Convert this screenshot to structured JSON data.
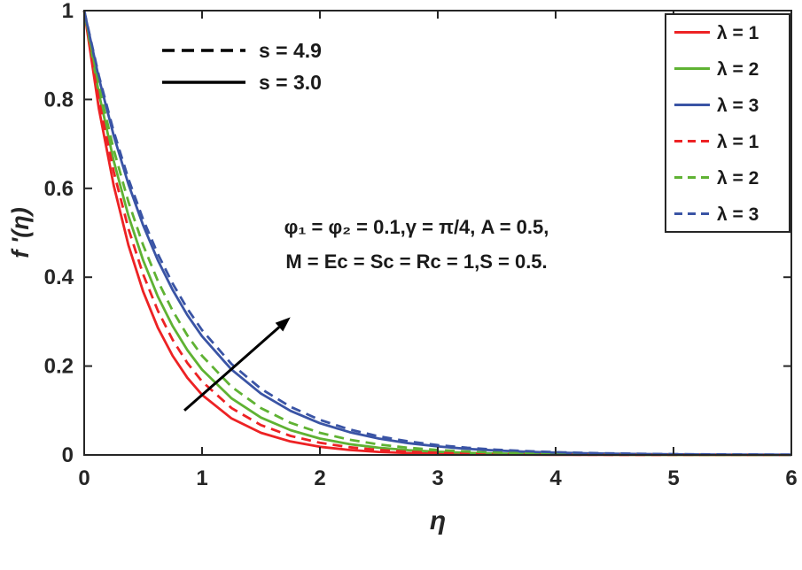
{
  "figure": {
    "background": "#ffffff",
    "axes_color": "#262626",
    "tick_label_color": "#262626",
    "annotation_color": "#1a1a1a"
  },
  "chart_data": {
    "type": "line",
    "title": "",
    "xlabel": "η",
    "ylabel": "f '(η)",
    "xlim": [
      0,
      6
    ],
    "ylim": [
      0,
      1
    ],
    "x_ticks": [
      0,
      1,
      2,
      3,
      4,
      5,
      6
    ],
    "y_ticks": [
      0,
      0.2,
      0.4,
      0.6,
      0.8,
      1
    ],
    "grid": false,
    "legend_position": "top-right",
    "x": [
      0,
      0.125,
      0.25,
      0.375,
      0.5,
      0.625,
      0.75,
      0.875,
      1,
      1.25,
      1.5,
      1.75,
      2,
      2.25,
      2.5,
      2.75,
      3,
      3.25,
      3.5,
      3.75,
      4,
      4.25,
      4.5,
      4.75,
      5,
      5.25,
      5.5,
      5.75,
      6
    ],
    "series": [
      {
        "name": "λ = 1",
        "s": "3.0",
        "color": "#ed2224",
        "dash": false,
        "values": [
          1,
          0.7788,
          0.6065,
          0.4724,
          0.3679,
          0.2865,
          0.2231,
          0.1738,
          0.1353,
          0.0821,
          0.0498,
          0.0302,
          0.0183,
          0.0111,
          0.0067,
          0.0041,
          0.0025,
          0.0015,
          0.0009,
          0.0006,
          0.0003,
          0.0002,
          0.0001,
          0.0001,
          0.0001,
          0,
          0,
          0,
          0
        ]
      },
      {
        "name": "λ = 2",
        "s": "3.0",
        "color": "#5fb233",
        "dash": false,
        "values": [
          1,
          0.8137,
          0.662,
          0.5385,
          0.4382,
          0.3566,
          0.2901,
          0.2361,
          0.192,
          0.1272,
          0.0841,
          0.0557,
          0.0369,
          0.0244,
          0.0162,
          0.0107,
          0.0071,
          0.0047,
          0.0031,
          0.0021,
          0.0014,
          0.0009,
          0.0006,
          0.0004,
          0.0003,
          0.0002,
          0.0001,
          0.0001,
          0.0001
        ]
      },
      {
        "name": "λ = 3",
        "s": "3.0",
        "color": "#3a54a5",
        "dash": false,
        "values": [
          1,
          0.8479,
          0.7189,
          0.6096,
          0.5169,
          0.4382,
          0.3716,
          0.315,
          0.2671,
          0.192,
          0.1381,
          0.0993,
          0.0714,
          0.0513,
          0.0369,
          0.0265,
          0.0191,
          0.0137,
          0.0099,
          0.0071,
          0.0051,
          0.0037,
          0.0026,
          0.0019,
          0.0014,
          0.001,
          0.0007,
          0.0005,
          0.0004
        ]
      },
      {
        "name": "λ = 1",
        "s": "4.9",
        "color": "#ed2224",
        "dash": true,
        "values": [
          1,
          0.7985,
          0.6376,
          0.5092,
          0.4066,
          0.3247,
          0.2592,
          0.207,
          0.1653,
          0.1054,
          0.0672,
          0.0429,
          0.0273,
          0.0174,
          0.0111,
          0.0071,
          0.0045,
          0.0029,
          0.0018,
          0.0012,
          0.0007,
          0.0005,
          0.0003,
          0.0002,
          0.0001,
          0.0001,
          0.0001,
          0,
          0
        ]
      },
      {
        "name": "λ = 2",
        "s": "4.9",
        "color": "#5fb233",
        "dash": true,
        "values": [
          1,
          0.829,
          0.6873,
          0.5698,
          0.4724,
          0.3916,
          0.3247,
          0.2691,
          0.2231,
          0.1534,
          0.1054,
          0.0724,
          0.0498,
          0.0342,
          0.0235,
          0.0162,
          0.0111,
          0.0076,
          0.0052,
          0.0036,
          0.0025,
          0.0017,
          0.0012,
          0.0008,
          0.0006,
          0.0004,
          0.0003,
          0.0002,
          0.0001
        ]
      },
      {
        "name": "λ = 3",
        "s": "4.9",
        "color": "#3a54a5",
        "dash": true,
        "values": [
          1,
          0.8532,
          0.728,
          0.6213,
          0.5301,
          0.4524,
          0.3859,
          0.3293,
          0.2808,
          0.2045,
          0.1488,
          0.1084,
          0.0789,
          0.0574,
          0.0418,
          0.0304,
          0.0222,
          0.0161,
          0.0117,
          0.0086,
          0.0062,
          0.0045,
          0.0033,
          0.0024,
          0.0017,
          0.0013,
          0.0009,
          0.0007,
          0.0005
        ]
      }
    ],
    "annotations": {
      "s_legend": [
        {
          "style": "dashed",
          "label": "s = 4.9"
        },
        {
          "style": "solid",
          "label": "s = 3.0"
        }
      ],
      "param_text": [
        "φ₁ = φ₂ = 0.1,γ = π/4, A = 0.5,",
        "M = Ec = Sc = Rc = 1,S = 0.5."
      ],
      "arrow": {
        "from_x": 0.85,
        "from_y": 0.1,
        "to_x": 1.75,
        "to_y": 0.31
      }
    }
  }
}
